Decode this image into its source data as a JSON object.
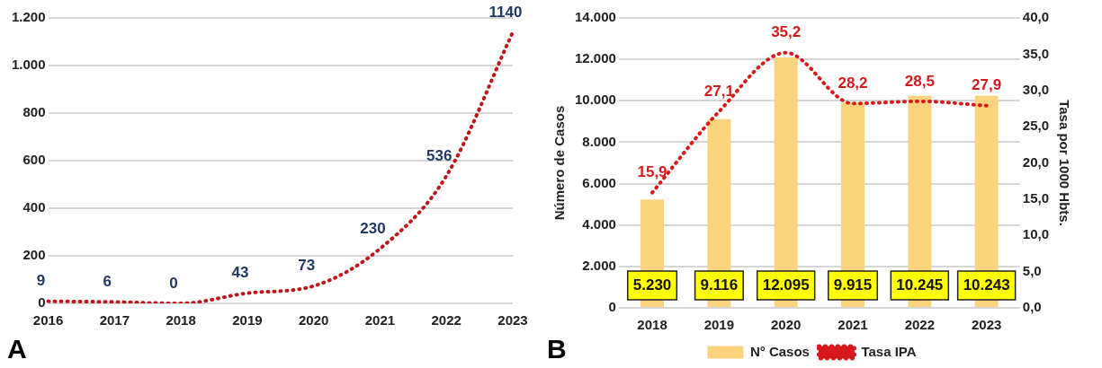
{
  "chart_data": [
    {
      "type": "line",
      "categories": [
        "2016",
        "2017",
        "2018",
        "2019",
        "2020",
        "2021",
        "2022",
        "2023"
      ],
      "values": [
        9,
        6,
        0,
        43,
        73,
        230,
        536,
        1140
      ],
      "color": "#c0141c",
      "line_style": "dotted",
      "marker": "none",
      "data_labels": true,
      "grid": "y",
      "legend": false,
      "ylim": [
        0,
        1200
      ],
      "yticks": [
        0,
        200,
        400,
        600,
        800,
        {
          "value": 1000,
          "label": "1.000"
        },
        {
          "value": 1200,
          "label": "1.200"
        }
      ],
      "annotations": [
        "A"
      ]
    },
    {
      "type": "bar",
      "categories": [
        "2018",
        "2019",
        "2020",
        "2021",
        "2022",
        "2023"
      ],
      "series": [
        {
          "name": "N° Casos",
          "color": "#fbd37c",
          "values": [
            5230,
            9116,
            12095,
            9915,
            10245,
            10243
          ],
          "value_labels": [
            "5.230",
            "9.116",
            "12.095",
            "9.915",
            "10.245",
            "10.243"
          ]
        },
        {
          "name": "Tasa IPA",
          "type": "line",
          "axis": "y2",
          "color": "#d7191c",
          "values": [
            15.9,
            27.1,
            35.2,
            28.2,
            28.5,
            27.9
          ],
          "value_labels": [
            "15,9",
            "27,1",
            "35,2",
            "28,2",
            "28,5",
            "27,9"
          ]
        }
      ],
      "line_style": "dotted",
      "marker": "none",
      "grid": "y",
      "legend": "bottom",
      "ylabel": "Número de Casos",
      "y2label": "Tasa por 1000 Hbts.",
      "ylim": [
        0,
        14000
      ],
      "yticks": [
        0,
        {
          "value": 2000,
          "label": "2.000"
        },
        {
          "value": 4000,
          "label": "4.000"
        },
        {
          "value": 6000,
          "label": "6.000"
        },
        {
          "value": 8000,
          "label": "8.000"
        },
        {
          "value": 10000,
          "label": "10.000"
        },
        {
          "value": 12000,
          "label": "12.000"
        },
        {
          "value": 14000,
          "label": "14.000"
        }
      ],
      "y2lim": [
        0,
        40
      ],
      "y2ticks": [
        {
          "value": 0,
          "label": "0,0"
        },
        {
          "value": 5,
          "label": "5,0"
        },
        {
          "value": 10,
          "label": "10,0"
        },
        {
          "value": 15,
          "label": "15,0"
        },
        {
          "value": 20,
          "label": "20,0"
        },
        {
          "value": 25,
          "label": "25,0"
        },
        {
          "value": 30,
          "label": "30,0"
        },
        {
          "value": 35,
          "label": "35,0"
        },
        {
          "value": 40,
          "label": "40,0"
        }
      ],
      "annotations": [
        "B"
      ]
    }
  ]
}
